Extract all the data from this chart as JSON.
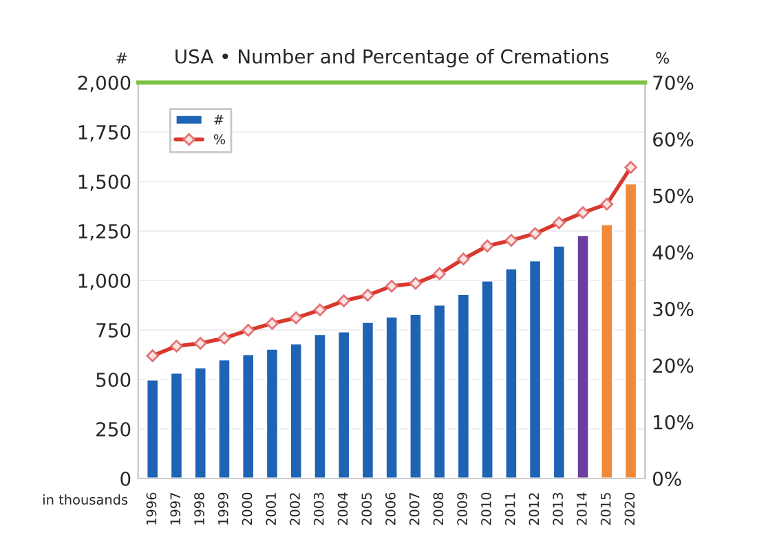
{
  "chart_data": {
    "type": "bar",
    "title": "USA • Number and Percentage of Cremations",
    "ylabel": "#",
    "y2label": "%",
    "annotations": [
      "in thousands"
    ],
    "categories": [
      "1996",
      "1997",
      "1998",
      "1999",
      "2000",
      "2001",
      "2002",
      "2003",
      "2004",
      "2005",
      "2006",
      "2007",
      "2008",
      "2009",
      "2010",
      "2011",
      "2012",
      "2013",
      "2014",
      "2015",
      "2020"
    ],
    "series": [
      {
        "name": "#",
        "colors": [
          "#1f63b5",
          "#1f63b5",
          "#1f63b5",
          "#1f63b5",
          "#1f63b5",
          "#1f63b5",
          "#1f63b5",
          "#1f63b5",
          "#1f63b5",
          "#1f63b5",
          "#1f63b5",
          "#1f63b5",
          "#1f63b5",
          "#1f63b5",
          "#1f63b5",
          "#1f63b5",
          "#1f63b5",
          "#1f63b5",
          "#6a3fa0",
          "#f08a3a",
          "#f08a3a"
        ],
        "values": [
          500,
          534,
          561,
          601,
          628,
          655,
          682,
          730,
          743,
          790,
          818,
          831,
          878,
          932,
          1000,
          1061,
          1101,
          1176,
          1230,
          1284,
          1490
        ]
      },
      {
        "name": "%",
        "type": "line",
        "axis": "y2",
        "color": "#d9382e",
        "marker": "diamond",
        "values": [
          21.7,
          23.4,
          23.9,
          24.8,
          26.2,
          27.4,
          28.4,
          29.8,
          31.4,
          32.4,
          34.0,
          34.5,
          36.2,
          38.8,
          41.1,
          42.1,
          43.3,
          45.2,
          47.0,
          48.5,
          55.0
        ]
      }
    ],
    "ylim": [
      0,
      2000
    ],
    "yticks": [
      0,
      250,
      {
        "value": 500,
        "label": "500"
      },
      {
        "value": 750,
        "label": "750"
      },
      {
        "value": 1000,
        "label": "1,000"
      },
      {
        "value": 1250,
        "label": "1,250"
      },
      {
        "value": 1500,
        "label": "1,500"
      },
      {
        "value": 1750,
        "label": "1,750"
      },
      {
        "value": 2000,
        "label": "2,000"
      }
    ],
    "y2lim": [
      0,
      70
    ],
    "y2ticks": [
      {
        "value": 0,
        "label": "0%"
      },
      {
        "value": 10,
        "label": "10%"
      },
      {
        "value": 20,
        "label": "20%"
      },
      {
        "value": 30,
        "label": "30%"
      },
      {
        "value": 40,
        "label": "40%"
      },
      {
        "value": 50,
        "label": "50%"
      },
      {
        "value": 60,
        "label": "60%"
      },
      {
        "value": 70,
        "label": "70%"
      }
    ],
    "grid": "y",
    "legend": "top left"
  }
}
